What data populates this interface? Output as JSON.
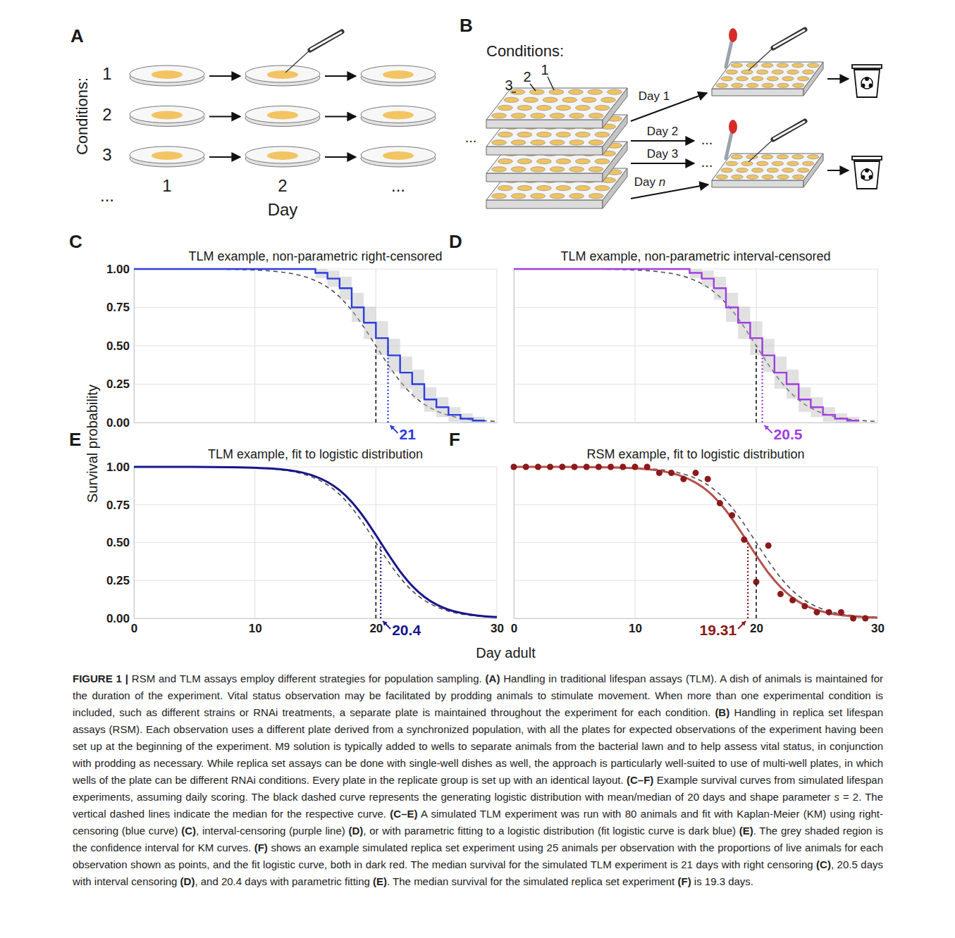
{
  "diagram_a": {
    "panel_label": "A",
    "y_label": "Conditions:",
    "rows": [
      "1",
      "2",
      "3",
      "..."
    ],
    "columns": [
      "1",
      "2",
      "..."
    ],
    "x_label": "Day"
  },
  "diagram_b": {
    "panel_label": "B",
    "label": "Conditions:",
    "conditions": [
      "1",
      "2",
      "3",
      "..."
    ],
    "arrows": [
      {
        "label": "Day 1"
      },
      {
        "label": "Day 2",
        "after": "..."
      },
      {
        "label": "Day 3",
        "after": "..."
      },
      {
        "label": "Day ",
        "label_italic": "n"
      }
    ]
  },
  "shared_axes": {
    "x_label": "Day adult",
    "y_label": "Survival probability"
  },
  "chart_data": [
    {
      "type": "line",
      "panel_label": "C",
      "title": "TLM example, non-parametric right-censored",
      "xlim": [
        0,
        30
      ],
      "ylim": [
        0,
        1
      ],
      "xticks": [
        0,
        10,
        20,
        30
      ],
      "yticks": [
        {
          "value": 0,
          "label": "0.00"
        },
        {
          "value": 0.25,
          "label": "0.25"
        },
        {
          "value": 0.5,
          "label": "0.50"
        },
        {
          "value": 0.75,
          "label": "0.75"
        },
        {
          "value": 1,
          "label": "1.00"
        }
      ],
      "grid": true,
      "tick_labels": "y",
      "generating_median": 20,
      "median": 21,
      "median_survival": 0.5,
      "series": [
        {
          "type": "line",
          "line_style": "dashed",
          "color": "#4d4d4d",
          "x": [
            0,
            4,
            8,
            10,
            11,
            12,
            13,
            14,
            15,
            16,
            17,
            18,
            19,
            20,
            21,
            22,
            23,
            24,
            25,
            26,
            27,
            28,
            29,
            30
          ],
          "values": [
            1,
            1,
            0.998,
            0.993,
            0.989,
            0.982,
            0.971,
            0.953,
            0.924,
            0.881,
            0.818,
            0.731,
            0.622,
            0.5,
            0.378,
            0.269,
            0.182,
            0.119,
            0.076,
            0.047,
            0.029,
            0.018,
            0.011,
            0.007
          ]
        },
        {
          "type": "step",
          "line_style": "solid",
          "color": "#2b3de0",
          "x": [
            0,
            15,
            16,
            17,
            18,
            19,
            20,
            21,
            22,
            23,
            24,
            25,
            26,
            27,
            28,
            29
          ],
          "values": [
            1,
            0.975,
            0.9375,
            0.875,
            0.75,
            0.65,
            0.55,
            0.4375,
            0.325,
            0.25,
            0.15,
            0.1,
            0.05,
            0.025,
            0.0125,
            0.0125
          ],
          "ci_lower": [
            1,
            0.941,
            0.884,
            0.8,
            0.655,
            0.545,
            0.44,
            0.33,
            0.22,
            0.155,
            0.07,
            0.035,
            0.005,
            0,
            0,
            0
          ],
          "ci_upper": [
            1,
            1,
            0.99,
            0.95,
            0.845,
            0.755,
            0.66,
            0.545,
            0.43,
            0.345,
            0.23,
            0.165,
            0.1,
            0.06,
            0.037,
            0.037
          ]
        }
      ]
    },
    {
      "type": "line",
      "panel_label": "D",
      "title": "TLM example, non-parametric interval-censored",
      "xlim": [
        0,
        30
      ],
      "ylim": [
        0,
        1
      ],
      "xticks": [
        0,
        10,
        20,
        30
      ],
      "yticks": [
        {
          "value": 0,
          "label": "0.00"
        },
        {
          "value": 0.25,
          "label": "0.25"
        },
        {
          "value": 0.5,
          "label": "0.50"
        },
        {
          "value": 0.75,
          "label": "0.75"
        },
        {
          "value": 1,
          "label": "1.00"
        }
      ],
      "grid": true,
      "tick_labels": false,
      "generating_median": 20,
      "median": 20.5,
      "median_survival": 0.5,
      "series": [
        {
          "type": "line",
          "line_style": "dashed",
          "color": "#4d4d4d",
          "x": [
            0,
            4,
            8,
            10,
            11,
            12,
            13,
            14,
            15,
            16,
            17,
            18,
            19,
            20,
            21,
            22,
            23,
            24,
            25,
            26,
            27,
            28,
            29,
            30
          ],
          "values": [
            1,
            1,
            0.998,
            0.993,
            0.989,
            0.982,
            0.971,
            0.953,
            0.924,
            0.881,
            0.818,
            0.731,
            0.622,
            0.5,
            0.378,
            0.269,
            0.182,
            0.119,
            0.076,
            0.047,
            0.029,
            0.018,
            0.011,
            0.007
          ]
        },
        {
          "type": "step",
          "line_style": "solid",
          "color": "#a03ee0",
          "x": [
            0,
            14.5,
            15.5,
            16.5,
            17.5,
            18.5,
            19.5,
            20.5,
            21.5,
            22.5,
            23.5,
            24.5,
            25.5,
            26.5,
            27.5,
            28.5
          ],
          "values": [
            1,
            0.975,
            0.9375,
            0.875,
            0.75,
            0.65,
            0.55,
            0.4375,
            0.325,
            0.25,
            0.15,
            0.1,
            0.05,
            0.025,
            0.0125,
            0.0125
          ],
          "ci_lower": [
            1,
            0.941,
            0.884,
            0.8,
            0.655,
            0.545,
            0.44,
            0.33,
            0.22,
            0.155,
            0.07,
            0.035,
            0.005,
            0,
            0,
            0
          ],
          "ci_upper": [
            1,
            1,
            0.99,
            0.95,
            0.845,
            0.755,
            0.66,
            0.545,
            0.43,
            0.345,
            0.23,
            0.165,
            0.1,
            0.06,
            0.037,
            0.037
          ]
        }
      ]
    },
    {
      "type": "line",
      "panel_label": "E",
      "title": "TLM example, fit to logistic distribution",
      "xlim": [
        0,
        30
      ],
      "ylim": [
        0,
        1
      ],
      "xticks": [
        0,
        10,
        20,
        30
      ],
      "yticks": [
        {
          "value": 0,
          "label": "0.00"
        },
        {
          "value": 0.25,
          "label": "0.25"
        },
        {
          "value": 0.5,
          "label": "0.50"
        },
        {
          "value": 0.75,
          "label": "0.75"
        },
        {
          "value": 1,
          "label": "1.00"
        }
      ],
      "grid": true,
      "tick_labels": true,
      "generating_median": 20,
      "median": 20.4,
      "median_survival": 0.5,
      "series": [
        {
          "type": "line",
          "line_style": "dashed",
          "color": "#4d4d4d",
          "x": [
            0,
            4,
            8,
            10,
            11,
            12,
            13,
            14,
            15,
            16,
            17,
            18,
            19,
            20,
            21,
            22,
            23,
            24,
            25,
            26,
            27,
            28,
            29,
            30
          ],
          "values": [
            1,
            1,
            0.998,
            0.993,
            0.989,
            0.982,
            0.971,
            0.953,
            0.924,
            0.881,
            0.818,
            0.731,
            0.622,
            0.5,
            0.378,
            0.269,
            0.182,
            0.119,
            0.076,
            0.047,
            0.029,
            0.018,
            0.011,
            0.007
          ]
        },
        {
          "type": "line",
          "line_style": "solid",
          "color": "#17178a",
          "x": [
            0,
            4,
            8,
            10,
            11,
            12,
            13,
            14,
            15,
            16,
            17,
            18,
            19,
            20,
            21,
            22,
            23,
            24,
            25,
            26,
            27,
            28,
            29,
            30
          ],
          "values": [
            1,
            1,
            0.998,
            0.994,
            0.991,
            0.985,
            0.976,
            0.961,
            0.937,
            0.9,
            0.846,
            0.769,
            0.668,
            0.55,
            0.426,
            0.31,
            0.214,
            0.142,
            0.091,
            0.057,
            0.036,
            0.022,
            0.013,
            0.008
          ]
        }
      ]
    },
    {
      "type": "line",
      "panel_label": "F",
      "title": "RSM example, fit to logistic distribution",
      "xlim": [
        0,
        30
      ],
      "ylim": [
        0,
        1
      ],
      "xticks": [
        0,
        10,
        20,
        30
      ],
      "yticks": [
        {
          "value": 0,
          "label": "0.00"
        },
        {
          "value": 0.25,
          "label": "0.25"
        },
        {
          "value": 0.5,
          "label": "0.50"
        },
        {
          "value": 0.75,
          "label": "0.75"
        },
        {
          "value": 1,
          "label": "1.00"
        }
      ],
      "grid": true,
      "tick_labels": "x",
      "generating_median": 20,
      "median": 19.31,
      "median_survival": 0.5,
      "series": [
        {
          "type": "line",
          "line_style": "dashed",
          "color": "#4d4d4d",
          "x": [
            0,
            4,
            8,
            10,
            11,
            12,
            13,
            14,
            15,
            16,
            17,
            18,
            19,
            20,
            21,
            22,
            23,
            24,
            25,
            26,
            27,
            28,
            29,
            30
          ],
          "values": [
            1,
            1,
            0.998,
            0.993,
            0.989,
            0.982,
            0.971,
            0.953,
            0.924,
            0.881,
            0.818,
            0.731,
            0.622,
            0.5,
            0.378,
            0.269,
            0.182,
            0.119,
            0.076,
            0.047,
            0.029,
            0.018,
            0.011,
            0.007
          ]
        },
        {
          "type": "line",
          "line_style": "solid",
          "color": "#b5524e",
          "x": [
            0,
            4,
            8,
            10,
            11,
            12,
            13,
            14,
            15,
            16,
            17,
            18,
            19,
            20,
            21,
            22,
            23,
            24,
            25,
            26,
            27,
            28,
            29,
            30
          ],
          "values": [
            1,
            1,
            0.996,
            0.991,
            0.985,
            0.975,
            0.959,
            0.934,
            0.896,
            0.84,
            0.76,
            0.658,
            0.539,
            0.415,
            0.3,
            0.207,
            0.136,
            0.087,
            0.055,
            0.034,
            0.021,
            0.013,
            0.008,
            0.005
          ]
        },
        {
          "type": "scatter",
          "marker": "circle",
          "color": "#8b1a1a",
          "x": [
            0,
            1,
            2,
            3,
            4,
            5,
            6,
            7,
            8,
            9,
            10,
            11,
            12,
            13,
            14,
            15,
            16,
            17,
            18,
            19,
            20,
            21,
            22,
            23,
            24,
            25,
            26,
            27,
            28,
            29
          ],
          "values": [
            1,
            1,
            1,
            1,
            1,
            1,
            1,
            1,
            1,
            1,
            1,
            1,
            0.96,
            0.96,
            0.92,
            0.96,
            0.92,
            0.76,
            0.68,
            0.52,
            0.24,
            0.48,
            0.16,
            0.12,
            0.08,
            0.04,
            0.04,
            0.04,
            0,
            0
          ]
        }
      ]
    }
  ],
  "caption": {
    "runs": [
      {
        "text": "FIGURE 1 |",
        "bold": true
      },
      {
        "text": " RSM and TLM assays employ different strategies for population sampling. "
      },
      {
        "text": "(A)",
        "bold": true
      },
      {
        "text": " Handling in traditional lifespan assays (TLM). A dish of animals is maintained for the duration of the experiment. Vital status observation may be facilitated by prodding animals to stimulate movement. When more than one experimental condition is included, such as different strains or RNAi treatments, a separate plate is maintained throughout the experiment for each condition. "
      },
      {
        "text": "(B)",
        "bold": true
      },
      {
        "text": " Handling in replica set lifespan assays (RSM). Each observation uses a different plate derived from a synchronized population, with all the plates for expected observations of the experiment having been set up at the beginning of the experiment. M9 solution is typically added to wells to separate animals from the bacterial lawn and to help assess vital status, in conjunction with prodding as necessary. While replica set assays can be done with single-well dishes as well, the approach is particularly well-suited to use of multi-well plates, in which wells of the plate can be different RNAi conditions. Every plate in the replicate group is set up with an identical layout. "
      },
      {
        "text": "(C–F)",
        "bold": true
      },
      {
        "text": " Example survival curves from simulated lifespan experiments, assuming daily scoring. The black dashed curve represents the generating logistic distribution with mean/median of 20 days and shape parameter "
      },
      {
        "text": "s",
        "italic": true
      },
      {
        "text": " = 2. The vertical dashed lines indicate the median for the respective curve. "
      },
      {
        "text": "(C–E)",
        "bold": true
      },
      {
        "text": " A simulated TLM experiment was run with 80 animals and fit with Kaplan-Meier (KM) using right-censoring (blue curve) "
      },
      {
        "text": "(C)",
        "bold": true
      },
      {
        "text": ", interval-censoring (purple line) "
      },
      {
        "text": "(D)",
        "bold": true
      },
      {
        "text": ", or with parametric fitting to a logistic distribution (fit logistic curve is dark blue) "
      },
      {
        "text": "(E)",
        "bold": true
      },
      {
        "text": ". The grey shaded region is the confidence interval for KM curves. "
      },
      {
        "text": "(F)",
        "bold": true
      },
      {
        "text": " shows an example simulated replica set experiment using 25 animals per observation with the proportions of live animals for each observation shown as points, and the fit logistic curve, both in dark red. The median survival for the simulated TLM experiment is 21 days with right censoring "
      },
      {
        "text": "(C)",
        "bold": true
      },
      {
        "text": ", 20.5 days with interval censoring "
      },
      {
        "text": "(D)",
        "bold": true
      },
      {
        "text": ", and 20.4 days with parametric fitting "
      },
      {
        "text": "(E)",
        "bold": true
      },
      {
        "text": ". The median survival for the simulated replica set experiment "
      },
      {
        "text": "(F)",
        "bold": true
      },
      {
        "text": " is 19.3 days."
      }
    ]
  }
}
